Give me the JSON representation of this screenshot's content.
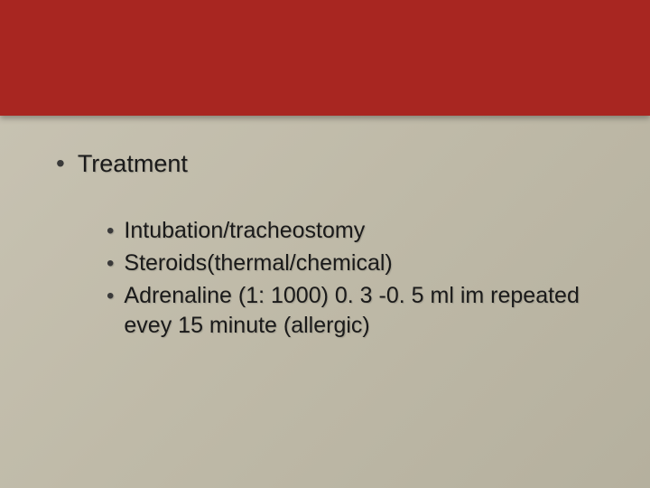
{
  "slide": {
    "header_band_height": 128,
    "colors": {
      "header_background": "#a82621",
      "body_background_start": "#c9c4b4",
      "body_background_end": "#b5b09e",
      "text": "#1a1a1a",
      "bullet": "#3a3a3a"
    },
    "typography": {
      "heading_fontsize": 27,
      "body_fontsize": 25,
      "font_family": "Arial"
    },
    "main_heading": "Treatment",
    "sub_items": [
      "Intubation/tracheostomy",
      "Steroids(thermal/chemical)",
      "Adrenaline (1: 1000) 0. 3 -0. 5 ml im repeated evey 15 minute (allergic)"
    ]
  }
}
